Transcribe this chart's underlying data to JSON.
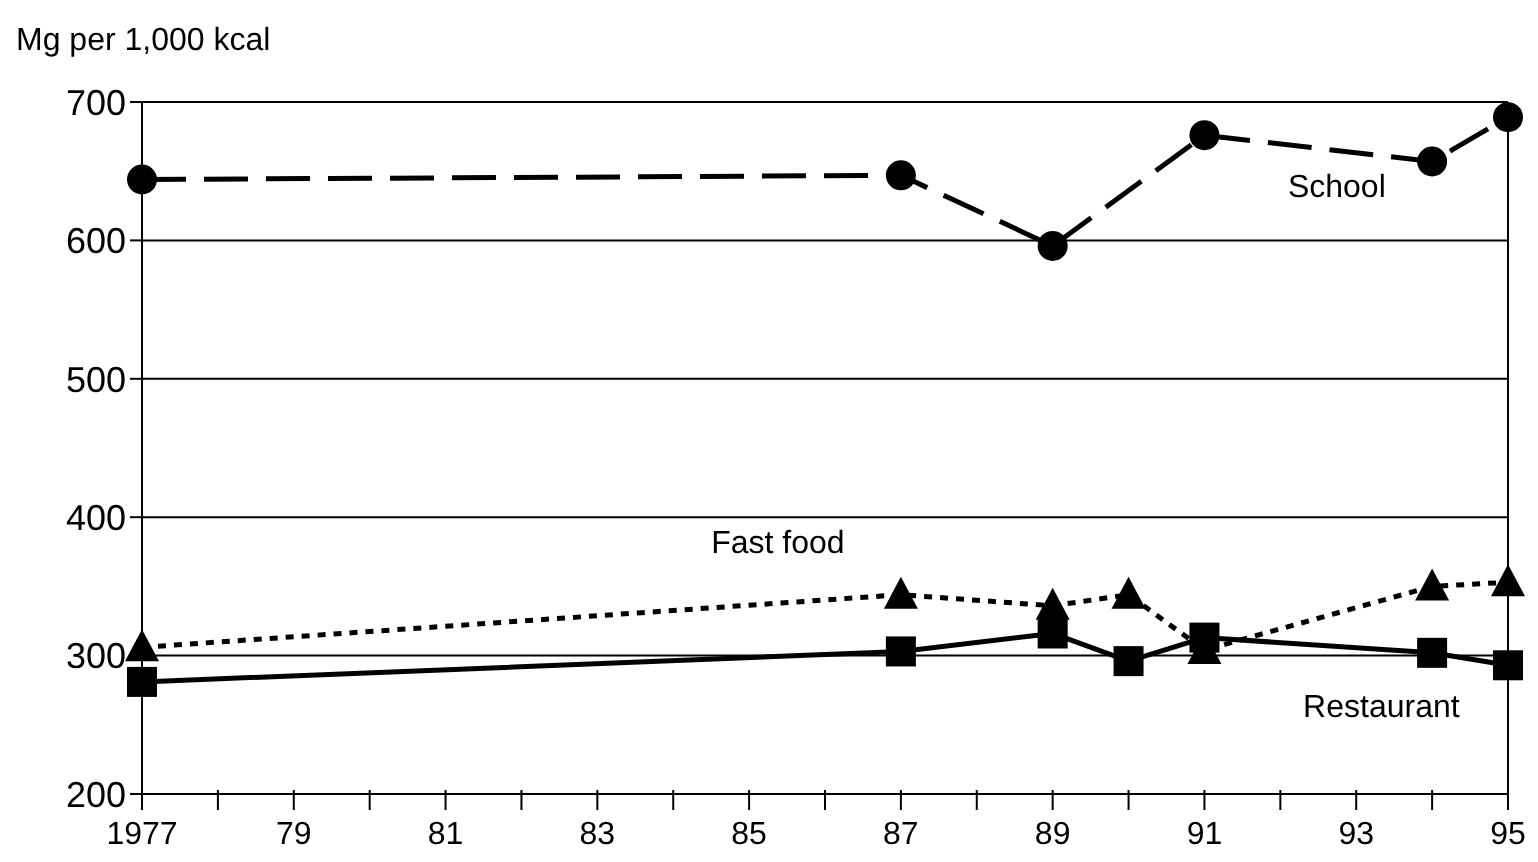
{
  "chart_data": {
    "type": "line",
    "ylabel": "Mg per 1,000 kcal",
    "xlim": [
      1977,
      1995
    ],
    "xticks": [
      {
        "value": 1977,
        "label": "1977"
      },
      {
        "value": 1978,
        "label": null
      },
      {
        "value": 1979,
        "label": "79"
      },
      {
        "value": 1980,
        "label": null
      },
      {
        "value": 1981,
        "label": "81"
      },
      {
        "value": 1982,
        "label": null
      },
      {
        "value": 1983,
        "label": "83"
      },
      {
        "value": 1984,
        "label": null
      },
      {
        "value": 1985,
        "label": "85"
      },
      {
        "value": 1986,
        "label": null
      },
      {
        "value": 1987,
        "label": "87"
      },
      {
        "value": 1988,
        "label": null
      },
      {
        "value": 1989,
        "label": "89"
      },
      {
        "value": 1990,
        "label": null
      },
      {
        "value": 1991,
        "label": "91"
      },
      {
        "value": 1992,
        "label": null
      },
      {
        "value": 1993,
        "label": "93"
      },
      {
        "value": 1994,
        "label": null
      },
      {
        "value": 1995,
        "label": "95"
      }
    ],
    "ylim": [
      200,
      700
    ],
    "yticks": [
      200,
      300,
      400,
      500,
      600,
      700
    ],
    "grid": "y",
    "series": [
      {
        "name": "School",
        "color": "#000000",
        "marker": "circle",
        "line_style": "dashed",
        "x": [
          1977,
          1987,
          1989,
          1991,
          1994,
          1995
        ],
        "values": [
          644,
          647,
          596,
          676,
          657,
          689
        ]
      },
      {
        "name": "Fast food",
        "color": "#000000",
        "marker": "triangle",
        "line_style": "dotted",
        "x": [
          1977,
          1987,
          1989,
          1990,
          1991,
          1994,
          1995
        ],
        "values": [
          306,
          344,
          336,
          344,
          304,
          350,
          353
        ]
      },
      {
        "name": "Restaurant",
        "color": "#000000",
        "marker": "square",
        "line_style": "solid",
        "x": [
          1977,
          1987,
          1989,
          1990,
          1991,
          1994,
          1995
        ],
        "values": [
          281,
          303,
          316,
          296,
          313,
          302,
          293
        ]
      }
    ]
  }
}
